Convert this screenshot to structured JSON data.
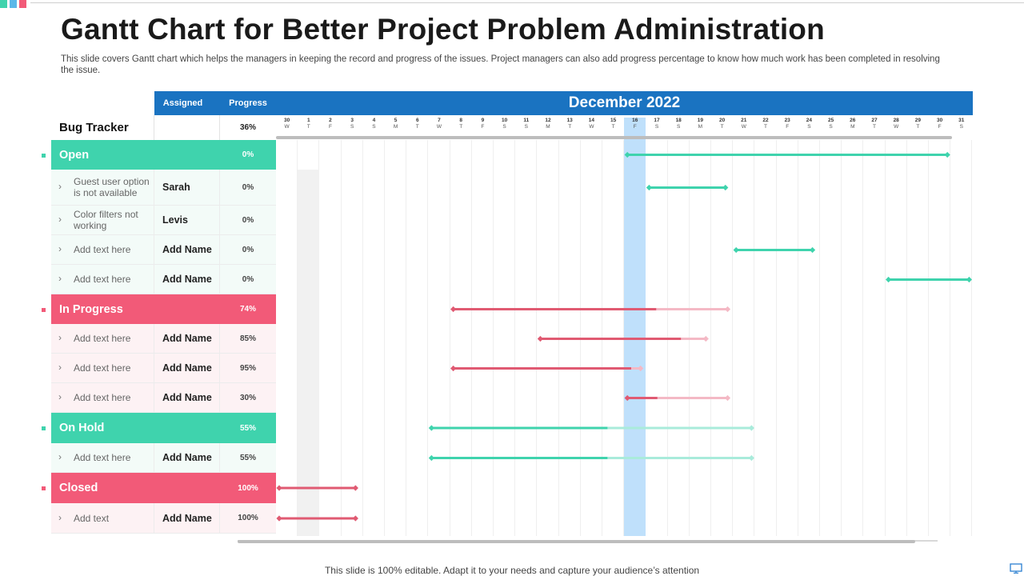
{
  "header": {
    "title": "Gantt Chart for Better Project Problem Administration",
    "subtitle": "This slide covers Gantt chart which helps the managers in keeping the record and progress of the issues. Project managers can also add progress percentage to know how much work has been completed in resolving the issue."
  },
  "table_headers": {
    "assigned": "Assigned",
    "progress": "Progress",
    "month": "December 2022"
  },
  "colors": {
    "blue": "#1a73c1",
    "teal": "#3fd3ad",
    "teal_light": "#a9ebdb",
    "pink": "#f25a78",
    "red_bar": "#e05a72",
    "pink_light": "#f4b9c5",
    "today": "#bfe0fb",
    "corner_marks": [
      "#3fd3ad",
      "#5bb8e8",
      "#f25a78"
    ]
  },
  "footer": "This slide is 100% editable. Adapt it to your needs and capture your audience’s attention",
  "chart_data": {
    "type": "gantt",
    "title": "December 2022",
    "tracker": {
      "label": "Bug Tracker",
      "progress": "36%"
    },
    "days": [
      {
        "d": "30",
        "w": "W"
      },
      {
        "d": "1",
        "w": "T"
      },
      {
        "d": "2",
        "w": "F"
      },
      {
        "d": "3",
        "w": "S"
      },
      {
        "d": "4",
        "w": "S"
      },
      {
        "d": "5",
        "w": "M"
      },
      {
        "d": "6",
        "w": "T"
      },
      {
        "d": "7",
        "w": "W"
      },
      {
        "d": "8",
        "w": "T"
      },
      {
        "d": "9",
        "w": "F"
      },
      {
        "d": "10",
        "w": "S"
      },
      {
        "d": "11",
        "w": "S"
      },
      {
        "d": "12",
        "w": "M"
      },
      {
        "d": "13",
        "w": "T"
      },
      {
        "d": "14",
        "w": "W"
      },
      {
        "d": "15",
        "w": "T"
      },
      {
        "d": "16",
        "w": "F"
      },
      {
        "d": "17",
        "w": "S"
      },
      {
        "d": "18",
        "w": "S"
      },
      {
        "d": "19",
        "w": "M"
      },
      {
        "d": "20",
        "w": "T"
      },
      {
        "d": "21",
        "w": "W"
      },
      {
        "d": "22",
        "w": "T"
      },
      {
        "d": "23",
        "w": "F"
      },
      {
        "d": "24",
        "w": "S"
      },
      {
        "d": "25",
        "w": "S"
      },
      {
        "d": "26",
        "w": "M"
      },
      {
        "d": "27",
        "w": "T"
      },
      {
        "d": "28",
        "w": "W"
      },
      {
        "d": "29",
        "w": "T"
      },
      {
        "d": "30",
        "w": "F"
      },
      {
        "d": "31",
        "w": "S"
      }
    ],
    "today_index": 16,
    "rows": [
      {
        "kind": "group",
        "name": "Open",
        "progress": "0%",
        "theme": "teal",
        "start": 16,
        "end": 31
      },
      {
        "kind": "item",
        "name": "Guest user option is not available",
        "assigned": "Sarah",
        "progress": "0%",
        "theme": "teal",
        "start": 17,
        "end": 20.8
      },
      {
        "kind": "item",
        "name": "Color filters not working",
        "assigned": "Levis",
        "progress": "0%",
        "theme": "teal"
      },
      {
        "kind": "item",
        "name": "Add text here",
        "assigned": "Add  Name",
        "progress": "0%",
        "theme": "teal",
        "start": 21,
        "end": 24.8
      },
      {
        "kind": "item",
        "name": "Add text here",
        "assigned": "Add  Name",
        "progress": "0%",
        "theme": "teal",
        "start": 28,
        "end": 32
      },
      {
        "kind": "group",
        "name": "In Progress",
        "progress": "74%",
        "theme": "pink",
        "start": 8,
        "end": 20.9,
        "done": 0.74
      },
      {
        "kind": "item",
        "name": "Add text here",
        "assigned": "Add  Name",
        "progress": "85%",
        "theme": "pink",
        "start": 12,
        "end": 19.9,
        "done": 0.85
      },
      {
        "kind": "item",
        "name": "Add text here",
        "assigned": "Add  Name",
        "progress": "95%",
        "theme": "pink",
        "start": 8,
        "end": 16.9,
        "done": 0.95
      },
      {
        "kind": "item",
        "name": "Add text here",
        "assigned": "Add  Name",
        "progress": "30%",
        "theme": "pink",
        "start": 16,
        "end": 20.9,
        "done": 0.3
      },
      {
        "kind": "group",
        "name": "On Hold",
        "progress": "55%",
        "theme": "teal",
        "start": 7,
        "end": 22,
        "done": 0.55
      },
      {
        "kind": "item",
        "name": "Add text here",
        "assigned": "Add  Name",
        "progress": "55%",
        "theme": "teal",
        "start": 7,
        "end": 22,
        "done": 0.55
      },
      {
        "kind": "group",
        "name": "Closed",
        "progress": "100%",
        "theme": "pink",
        "start": 0,
        "end": 3.8,
        "done": 1
      },
      {
        "kind": "item",
        "name": "Add text",
        "assigned": "Add  Name",
        "progress": "100%",
        "theme": "pink",
        "start": 0,
        "end": 3.8,
        "done": 1
      }
    ]
  }
}
